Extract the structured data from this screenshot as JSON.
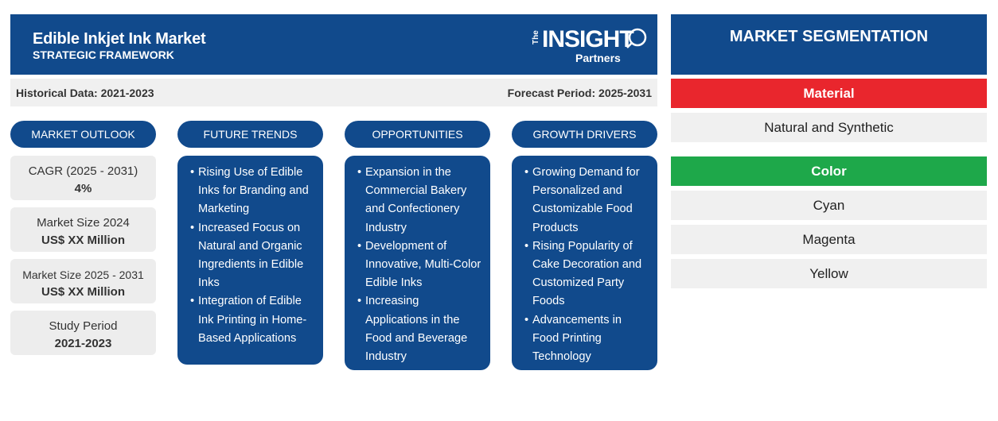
{
  "header": {
    "title": "Edible Inkjet Ink Market",
    "subtitle": "STRATEGIC FRAMEWORK",
    "logo": {
      "the": "The",
      "insight": "INSIGHT",
      "partners": "Partners"
    }
  },
  "periods": {
    "historical": "Historical Data: 2021-2023",
    "forecast": "Forecast Period: 2025-2031"
  },
  "columns": {
    "outlook": "MARKET OUTLOOK",
    "trends": "FUTURE TRENDS",
    "opportunities": "OPPORTUNITIES",
    "drivers": "GROWTH DRIVERS"
  },
  "outlook": [
    {
      "label": "CAGR (2025 - 2031)",
      "value": "4%"
    },
    {
      "label": "Market Size 2024",
      "value": "US$ XX Million"
    },
    {
      "label": "Market Size 2025 - 2031",
      "value": "US$ XX Million"
    },
    {
      "label": "Study Period",
      "value": "2021-2023"
    }
  ],
  "trends": [
    "Rising Use of Edible Inks for Branding and Marketing",
    "Increased Focus on Natural and Organic Ingredients in Edible Inks",
    "Integration of Edible Ink Printing in Home-Based Applications"
  ],
  "opportunities": [
    "Expansion in the Commercial Bakery and Confectionery Industry",
    "Development of Innovative, Multi-Color Edible Inks",
    "Increasing Applications in the Food and Beverage Industry"
  ],
  "drivers": [
    "Growing Demand for Personalized and Customizable Food Products",
    "Rising Popularity of Cake Decoration and Customized Party Foods",
    "Advancements in Food Printing Technology"
  ],
  "segmentation": {
    "title": "MARKET SEGMENTATION",
    "material": {
      "label": "Material",
      "color": "#e9262d",
      "items": [
        "Natural and Synthetic"
      ]
    },
    "color": {
      "label": "Color",
      "color": "#1ea84a",
      "items": [
        "Cyan",
        "Magenta",
        "Yellow"
      ]
    }
  },
  "colors": {
    "primary": "#114a8c",
    "panel": "#f0f0f0"
  }
}
